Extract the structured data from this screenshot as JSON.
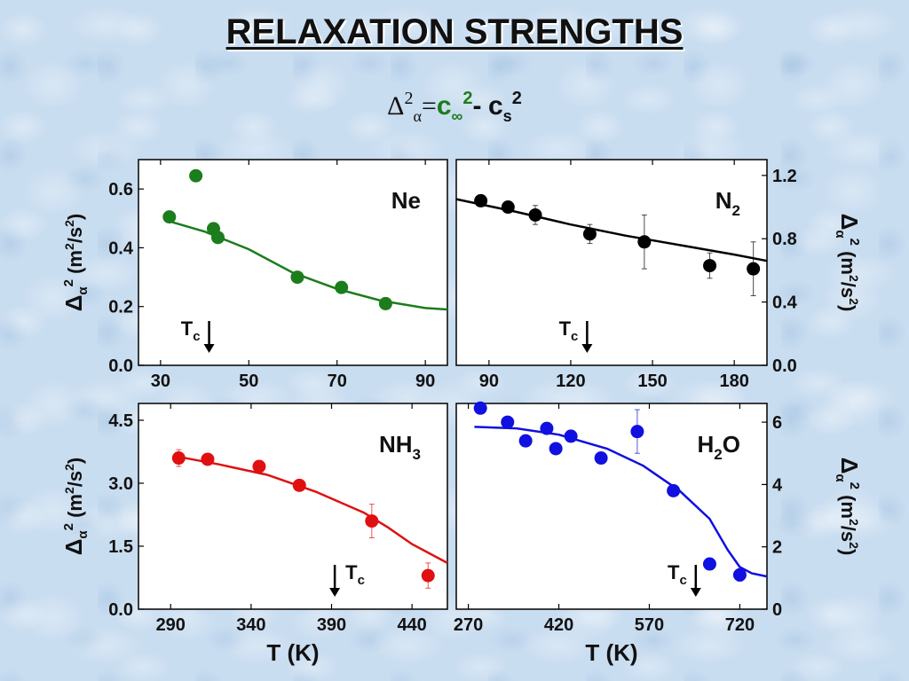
{
  "slide_title": "RELAXATION STRENGTHS",
  "formula": {
    "delta": "Δ",
    "delta_exp": "2",
    "delta_sub": "α",
    "equals": "=",
    "c_inf": "c",
    "inf_sub": "∞",
    "c_inf_exp": "2",
    "minus": "-",
    "c_s": "c",
    "s_sub": "s",
    "c_s_exp": "2"
  },
  "colors": {
    "ne": "#1b7d1b",
    "n2": "#000000",
    "nh3": "#e01010",
    "h2o": "#1010e0"
  },
  "chart_data": [
    {
      "id": "ne",
      "type": "scatter",
      "label": "Ne",
      "label_sub": "",
      "color": "#1b7d1b",
      "xlim": [
        25,
        95
      ],
      "ylim": [
        0,
        0.7
      ],
      "xticks": [
        30,
        50,
        70,
        90
      ],
      "xtick_labels": [
        "30",
        "50",
        "70",
        "90"
      ],
      "yticks": [
        0,
        0.2,
        0.4,
        0.6
      ],
      "ytick_labels": [
        "0.0",
        "0.2",
        "0.4",
        "0.6"
      ],
      "yaxis_side": "left",
      "ylabel": "Δα2 (m2/s2)",
      "xlabel": "",
      "points": [
        [
          32,
          0.505
        ],
        [
          38,
          0.645
        ],
        [
          42,
          0.465
        ],
        [
          43,
          0.435
        ],
        [
          61,
          0.3
        ],
        [
          71,
          0.265
        ],
        [
          81,
          0.21
        ]
      ],
      "errors": [
        0,
        0,
        0,
        0,
        0,
        0,
        0
      ],
      "fit": [
        [
          32,
          0.49
        ],
        [
          40,
          0.455
        ],
        [
          50,
          0.395
        ],
        [
          60,
          0.315
        ],
        [
          70,
          0.26
        ],
        [
          80,
          0.22
        ],
        [
          90,
          0.195
        ],
        [
          95,
          0.19
        ]
      ],
      "tc": 41,
      "tc_label": "T",
      "tc_sub": "c"
    },
    {
      "id": "n2",
      "type": "scatter",
      "label": "N",
      "label_sub": "2",
      "color": "#000000",
      "xlim": [
        78,
        192
      ],
      "ylim": [
        0,
        1.3
      ],
      "xticks": [
        90,
        120,
        150,
        180
      ],
      "xtick_labels": [
        "90",
        "120",
        "150",
        "180"
      ],
      "yticks": [
        0,
        0.4,
        0.8,
        1.2
      ],
      "ytick_labels": [
        "0.0",
        "0.4",
        "0.8",
        "1.2"
      ],
      "yaxis_side": "right",
      "ylabel": "Δα2 (m2/s2)",
      "xlabel": "",
      "points": [
        [
          87,
          1.04
        ],
        [
          97,
          1.0
        ],
        [
          107,
          0.95
        ],
        [
          127,
          0.83
        ],
        [
          147,
          0.78
        ],
        [
          171,
          0.63
        ],
        [
          187,
          0.61
        ]
      ],
      "errors": [
        0,
        0,
        0.06,
        0.06,
        0.17,
        0.08,
        0.17
      ],
      "fit": [
        [
          78,
          1.05
        ],
        [
          100,
          0.97
        ],
        [
          120,
          0.89
        ],
        [
          140,
          0.82
        ],
        [
          160,
          0.76
        ],
        [
          180,
          0.7
        ],
        [
          192,
          0.66
        ]
      ],
      "tc": 126,
      "tc_label": "T",
      "tc_sub": "c"
    },
    {
      "id": "nh3",
      "type": "scatter",
      "label": "NH",
      "label_sub": "3",
      "color": "#e01010",
      "xlim": [
        270,
        462
      ],
      "ylim": [
        0,
        4.9
      ],
      "xticks": [
        290,
        340,
        390,
        440
      ],
      "xtick_labels": [
        "290",
        "340",
        "390",
        "440"
      ],
      "yticks": [
        0,
        1.5,
        3.0,
        4.5
      ],
      "ytick_labels": [
        "0.0",
        "1.5",
        "3.0",
        "4.5"
      ],
      "yaxis_side": "left",
      "ylabel": "Δα2 (m2/s2)",
      "xlabel": "T (K)",
      "points": [
        [
          295,
          3.6
        ],
        [
          313,
          3.57
        ],
        [
          345,
          3.4
        ],
        [
          370,
          2.95
        ],
        [
          415,
          2.1
        ],
        [
          450,
          0.8
        ]
      ],
      "errors": [
        0.2,
        0,
        0,
        0,
        0.4,
        0.3
      ],
      "fit": [
        [
          292,
          3.65
        ],
        [
          320,
          3.45
        ],
        [
          350,
          3.2
        ],
        [
          380,
          2.8
        ],
        [
          410,
          2.3
        ],
        [
          425,
          1.95
        ],
        [
          440,
          1.55
        ],
        [
          462,
          1.1
        ]
      ],
      "tc": 392,
      "tc_label": "T",
      "tc_sub": "c"
    },
    {
      "id": "h2o",
      "type": "scatter",
      "label": "H",
      "label_sub": "2",
      "label_suffix": "O",
      "color": "#1010e0",
      "xlim": [
        250,
        765
      ],
      "ylim": [
        0,
        6.6
      ],
      "xticks": [
        270,
        420,
        570,
        720
      ],
      "xtick_labels": [
        "270",
        "420",
        "570",
        "720"
      ],
      "yticks": [
        0,
        2,
        4,
        6
      ],
      "ytick_labels": [
        "0",
        "2",
        "4",
        "6"
      ],
      "yaxis_side": "right",
      "ylabel": "Δα2 (m2/s2)",
      "xlabel": "T (K)",
      "points": [
        [
          290,
          6.45
        ],
        [
          335,
          6.0
        ],
        [
          365,
          5.4
        ],
        [
          400,
          5.8
        ],
        [
          415,
          5.15
        ],
        [
          440,
          5.55
        ],
        [
          490,
          4.85
        ],
        [
          550,
          5.7
        ],
        [
          610,
          3.8
        ],
        [
          670,
          1.45
        ],
        [
          720,
          1.1
        ]
      ],
      "errors": [
        0,
        0,
        0,
        0,
        0,
        0,
        0,
        0.7,
        0,
        0,
        0.2
      ],
      "fit": [
        [
          280,
          5.85
        ],
        [
          350,
          5.8
        ],
        [
          420,
          5.6
        ],
        [
          500,
          5.15
        ],
        [
          560,
          4.6
        ],
        [
          620,
          3.8
        ],
        [
          670,
          2.9
        ],
        [
          700,
          1.9
        ],
        [
          720,
          1.35
        ],
        [
          740,
          1.15
        ],
        [
          765,
          1.05
        ]
      ],
      "tc": 647,
      "tc_label": "T",
      "tc_sub": "c"
    }
  ]
}
